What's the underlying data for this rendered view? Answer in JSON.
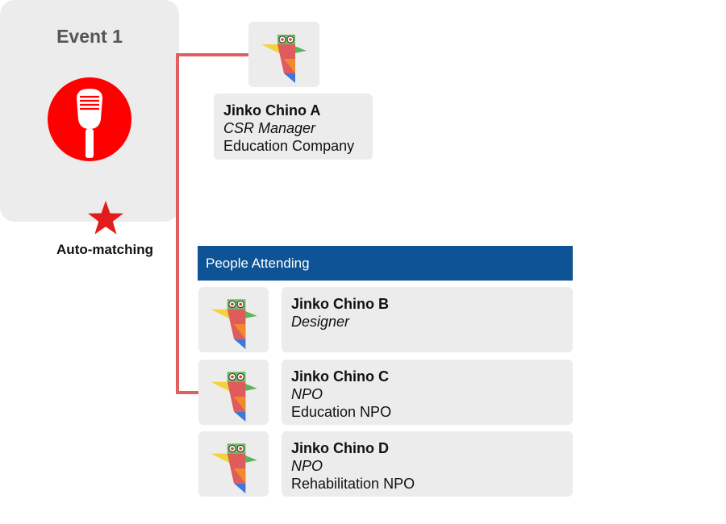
{
  "event": {
    "title": "Event 1",
    "icon": "microphone-icon",
    "accent": "#ff0000"
  },
  "host": {
    "name": "Jinko Chino A",
    "role": "CSR Manager",
    "org": "Education Company"
  },
  "auto_matching": {
    "label": "Auto-matching",
    "icon": "star-icon",
    "color": "#e31b1b",
    "line_color": "#e06060"
  },
  "attending": {
    "header": "People Attending",
    "header_color": "#0d5395",
    "people": [
      {
        "name": "Jinko Chino B",
        "role": "Designer",
        "org": ""
      },
      {
        "name": "Jinko Chino C",
        "role": "NPO",
        "org": "Education NPO"
      },
      {
        "name": "Jinko Chino D",
        "role": "NPO",
        "org": "Rehabilitation NPO"
      }
    ]
  }
}
